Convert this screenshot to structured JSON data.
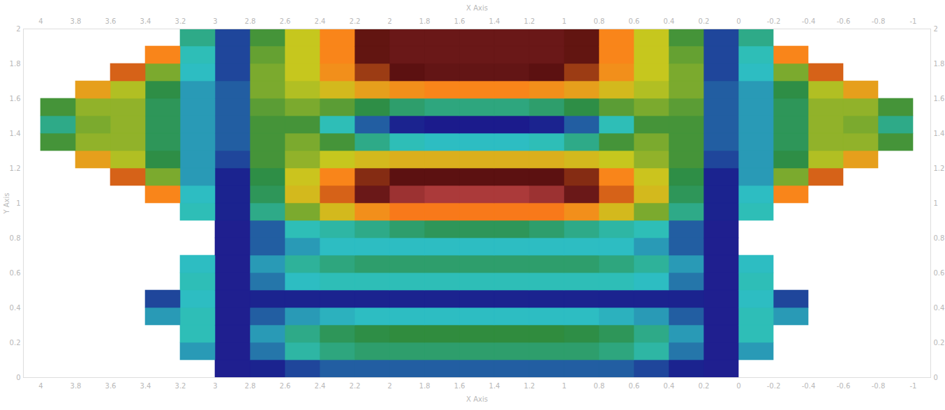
{
  "chart_data": {
    "type": "heatmap",
    "xlabel": "X Axis",
    "ylabel": "Y Axis",
    "xlim": [
      4.1,
      -1.1
    ],
    "ylim": [
      0,
      2
    ],
    "xticks": [
      4,
      3.8,
      3.6,
      3.4,
      3.2,
      3,
      2.8,
      2.6,
      2.4,
      2.2,
      2,
      1.8,
      1.6,
      1.4,
      1.2,
      1,
      0.8,
      0.6,
      0.4,
      0.2,
      0,
      -0.2,
      -0.4,
      -0.6,
      -0.8,
      -1
    ],
    "yticks": [
      0,
      0.2,
      0.4,
      0.6,
      0.8,
      1,
      1.2,
      1.4,
      1.6,
      1.8,
      2
    ],
    "x": [
      -0.9,
      -0.7,
      -0.5,
      -0.3,
      -0.1,
      0.1,
      0.3,
      0.5,
      0.7,
      0.9,
      1.1,
      1.3,
      1.5,
      1.7,
      1.9,
      2.1,
      2.3,
      2.5,
      2.7,
      2.9,
      3.1,
      3.3,
      3.5,
      3.7,
      3.9
    ],
    "y": [
      0.05,
      0.15,
      0.25,
      0.35,
      0.45,
      0.55,
      0.65,
      0.75,
      0.85,
      0.95,
      1.05,
      1.15,
      1.25,
      1.35,
      1.45,
      1.55,
      1.65,
      1.75,
      1.85,
      1.95
    ],
    "values": [
      [
        null,
        null,
        null,
        null,
        null,
        0.12,
        0.15,
        0.18,
        0.2,
        0.2,
        0.2,
        0.2,
        0.2,
        0.2,
        0.2,
        0.2,
        0.2,
        0.18,
        0.15,
        0.12,
        null,
        null,
        null,
        null,
        null
      ],
      [
        null,
        null,
        null,
        null,
        0.25,
        0.12,
        0.22,
        0.32,
        0.36,
        0.38,
        0.38,
        0.38,
        0.38,
        0.38,
        0.38,
        0.38,
        0.36,
        0.32,
        0.22,
        0.12,
        0.25,
        null,
        null,
        null,
        null
      ],
      [
        null,
        null,
        null,
        null,
        0.3,
        0.12,
        0.25,
        0.35,
        0.4,
        0.42,
        0.43,
        0.43,
        0.43,
        0.43,
        0.43,
        0.42,
        0.4,
        0.35,
        0.25,
        0.12,
        0.3,
        null,
        null,
        null,
        null
      ],
      [
        null,
        null,
        null,
        0.25,
        0.3,
        0.12,
        0.2,
        0.25,
        0.27,
        0.28,
        0.28,
        0.28,
        0.28,
        0.28,
        0.28,
        0.28,
        0.27,
        0.25,
        0.2,
        0.12,
        0.3,
        0.25,
        null,
        null,
        null
      ],
      [
        null,
        null,
        null,
        0.18,
        0.28,
        0.12,
        0.15,
        0.15,
        0.15,
        0.15,
        0.15,
        0.15,
        0.15,
        0.15,
        0.15,
        0.15,
        0.15,
        0.15,
        0.15,
        0.12,
        0.28,
        0.18,
        null,
        null,
        null
      ],
      [
        null,
        null,
        null,
        null,
        0.3,
        0.12,
        0.22,
        0.28,
        0.3,
        0.3,
        0.3,
        0.3,
        0.3,
        0.3,
        0.3,
        0.3,
        0.3,
        0.28,
        0.22,
        0.12,
        0.3,
        null,
        null,
        null,
        null
      ],
      [
        null,
        null,
        null,
        null,
        0.28,
        0.12,
        0.25,
        0.33,
        0.36,
        0.38,
        0.38,
        0.38,
        0.38,
        0.38,
        0.38,
        0.38,
        0.36,
        0.33,
        0.25,
        0.12,
        0.28,
        null,
        null,
        null,
        null
      ],
      [
        null,
        null,
        null,
        null,
        null,
        0.12,
        0.2,
        0.25,
        0.28,
        0.28,
        0.28,
        0.28,
        0.28,
        0.28,
        0.28,
        0.28,
        0.28,
        0.25,
        0.2,
        0.12,
        null,
        null,
        null,
        null,
        null
      ],
      [
        null,
        null,
        null,
        null,
        null,
        0.12,
        0.2,
        0.3,
        0.32,
        0.35,
        0.38,
        0.4,
        0.4,
        0.4,
        0.38,
        0.35,
        0.32,
        0.3,
        0.2,
        0.12,
        null,
        null,
        null,
        null,
        null
      ],
      [
        null,
        null,
        null,
        null,
        0.3,
        0.15,
        0.35,
        0.5,
        0.6,
        0.68,
        0.72,
        0.72,
        0.72,
        0.72,
        0.72,
        0.68,
        0.6,
        0.5,
        0.35,
        0.15,
        0.3,
        null,
        null,
        null,
        null
      ],
      [
        null,
        null,
        null,
        0.7,
        0.28,
        0.15,
        0.4,
        0.6,
        0.75,
        0.88,
        0.95,
        0.97,
        0.97,
        0.97,
        0.95,
        0.88,
        0.75,
        0.6,
        0.4,
        0.15,
        0.28,
        0.7,
        null,
        null,
        null
      ],
      [
        null,
        null,
        0.75,
        0.5,
        0.25,
        0.15,
        0.42,
        0.58,
        0.7,
        0.82,
        0.86,
        0.86,
        0.86,
        0.86,
        0.86,
        0.82,
        0.7,
        0.58,
        0.42,
        0.15,
        0.25,
        0.5,
        0.75,
        null,
        null
      ],
      [
        null,
        0.65,
        0.55,
        0.42,
        0.25,
        0.18,
        0.45,
        0.52,
        0.57,
        0.6,
        0.62,
        0.62,
        0.62,
        0.62,
        0.62,
        0.6,
        0.57,
        0.52,
        0.45,
        0.18,
        0.25,
        0.42,
        0.55,
        0.65,
        null
      ],
      [
        0.45,
        0.52,
        0.52,
        0.4,
        0.25,
        0.2,
        0.45,
        0.5,
        0.45,
        0.35,
        0.3,
        0.28,
        0.28,
        0.28,
        0.3,
        0.35,
        0.45,
        0.5,
        0.45,
        0.2,
        0.25,
        0.4,
        0.52,
        0.52,
        0.45
      ],
      [
        0.35,
        0.5,
        0.52,
        0.4,
        0.25,
        0.2,
        0.45,
        0.45,
        0.3,
        0.2,
        0.15,
        0.14,
        0.14,
        0.14,
        0.15,
        0.2,
        0.3,
        0.45,
        0.45,
        0.2,
        0.25,
        0.4,
        0.52,
        0.5,
        0.35
      ],
      [
        0.45,
        0.52,
        0.52,
        0.4,
        0.25,
        0.2,
        0.47,
        0.5,
        0.47,
        0.42,
        0.38,
        0.36,
        0.36,
        0.36,
        0.38,
        0.42,
        0.47,
        0.5,
        0.47,
        0.2,
        0.25,
        0.4,
        0.52,
        0.52,
        0.45
      ],
      [
        null,
        0.65,
        0.55,
        0.42,
        0.25,
        0.2,
        0.5,
        0.55,
        0.6,
        0.65,
        0.68,
        0.7,
        0.7,
        0.7,
        0.68,
        0.65,
        0.6,
        0.55,
        0.5,
        0.2,
        0.25,
        0.42,
        0.55,
        0.65,
        null
      ],
      [
        null,
        null,
        0.75,
        0.5,
        0.28,
        0.18,
        0.5,
        0.57,
        0.68,
        0.8,
        0.86,
        0.87,
        0.87,
        0.87,
        0.86,
        0.8,
        0.68,
        0.57,
        0.5,
        0.18,
        0.28,
        0.5,
        0.75,
        null,
        null
      ],
      [
        null,
        null,
        null,
        0.7,
        0.3,
        0.18,
        0.48,
        0.57,
        0.7,
        0.85,
        0.88,
        0.88,
        0.88,
        0.88,
        0.88,
        0.85,
        0.7,
        0.57,
        0.48,
        0.18,
        0.3,
        0.7,
        null,
        null,
        null
      ],
      [
        null,
        null,
        null,
        null,
        0.35,
        0.18,
        0.45,
        0.57,
        0.7,
        0.85,
        0.88,
        0.88,
        0.88,
        0.88,
        0.88,
        0.85,
        0.7,
        0.57,
        0.45,
        0.18,
        0.35,
        null,
        null,
        null,
        null
      ]
    ],
    "colorbar": {
      "range": [
        0,
        1
      ],
      "colors": [
        "#3b3b9e",
        "#1a1a8c",
        "#2ec4c4",
        "#2e8b3e",
        "#c8c81e",
        "#ff7d1a",
        "#5a1010",
        "#c04545"
      ]
    }
  }
}
